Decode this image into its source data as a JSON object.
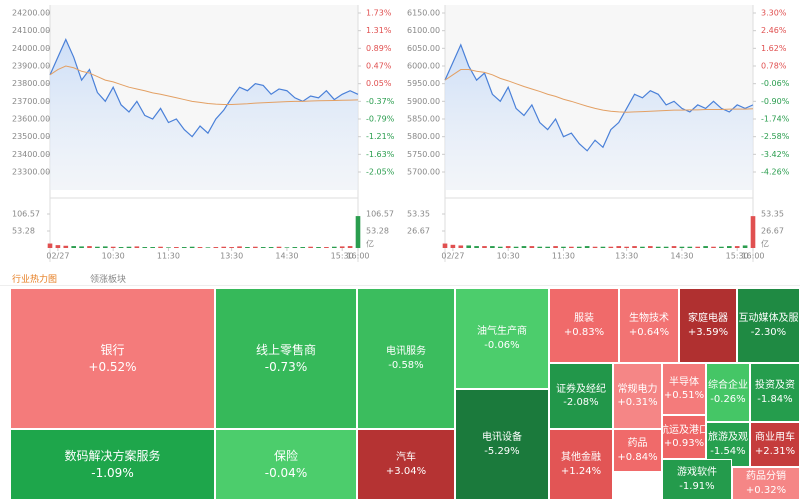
{
  "chart_data": [
    {
      "type": "line",
      "xlim": [
        0,
        39
      ],
      "x": [
        0,
        1,
        2,
        3,
        4,
        5,
        6,
        7,
        8,
        9,
        10,
        11,
        12,
        13,
        14,
        15,
        16,
        17,
        18,
        19,
        20,
        21,
        22,
        23,
        24,
        25,
        26,
        27,
        28,
        29,
        30,
        31,
        32,
        33,
        34,
        35,
        36,
        37,
        38,
        39
      ],
      "xticks": [
        {
          "value": 1,
          "label": "02/27"
        },
        {
          "value": 8,
          "label": "10:30"
        },
        {
          "value": 15,
          "label": "11:30"
        },
        {
          "value": 23,
          "label": "13:30"
        },
        {
          "value": 30,
          "label": "14:30"
        },
        {
          "value": 37,
          "label": "15:30"
        },
        {
          "value": 39,
          "label": "16:00"
        }
      ],
      "ylim": [
        23300,
        24200
      ],
      "yticks": [
        {
          "value": 24200,
          "label": "24200.00"
        },
        {
          "value": 24100,
          "label": "24100.00"
        },
        {
          "value": 24000,
          "label": "24000.00"
        },
        {
          "value": 23900,
          "label": "23900.00"
        },
        {
          "value": 23800,
          "label": "23800.00"
        },
        {
          "value": 23700,
          "label": "23700.00"
        },
        {
          "value": 23600,
          "label": "23600.00"
        },
        {
          "value": 23500,
          "label": "23500.00"
        },
        {
          "value": 23400,
          "label": "23400.00"
        },
        {
          "value": 23300,
          "label": "23300.00"
        }
      ],
      "y2lim": [
        -2.05,
        1.73
      ],
      "y2ticks": [
        {
          "value": 1.73,
          "label": "1.73%"
        },
        {
          "value": 1.31,
          "label": "1.31%"
        },
        {
          "value": 0.89,
          "label": "0.89%"
        },
        {
          "value": 0.47,
          "label": "0.47%"
        },
        {
          "value": 0.05,
          "label": "0.05%"
        },
        {
          "value": -0.37,
          "label": "-0.37%"
        },
        {
          "value": -0.79,
          "label": "-0.79%"
        },
        {
          "value": -1.21,
          "label": "-1.21%"
        },
        {
          "value": -1.63,
          "label": "-1.63%"
        },
        {
          "value": -2.05,
          "label": "-2.05%"
        }
      ],
      "series": [
        {
          "color": "#4a80d8",
          "values": [
            23850,
            23950,
            24050,
            23950,
            23820,
            23880,
            23750,
            23700,
            23780,
            23680,
            23640,
            23700,
            23620,
            23600,
            23660,
            23580,
            23600,
            23540,
            23500,
            23560,
            23520,
            23600,
            23650,
            23720,
            23780,
            23760,
            23800,
            23790,
            23740,
            23770,
            23760,
            23720,
            23700,
            23730,
            23720,
            23760,
            23710,
            23740,
            23760,
            23740
          ]
        },
        {
          "color": "#e3a064",
          "values": [
            23850,
            23880,
            23900,
            23890,
            23870,
            23860,
            23840,
            23820,
            23810,
            23795,
            23780,
            23770,
            23760,
            23748,
            23740,
            23730,
            23720,
            23710,
            23700,
            23694,
            23688,
            23684,
            23682,
            23682,
            23684,
            23686,
            23690,
            23692,
            23694,
            23696,
            23698,
            23700,
            23700,
            23702,
            23703,
            23704,
            23705,
            23706,
            23707,
            23708
          ]
        }
      ],
      "volume": {
        "type": "bar",
        "ylim": [
          0,
          106.57
        ],
        "yticks": [
          106.57,
          53.28
        ],
        "unit": "亿",
        "values": [
          14,
          9,
          7,
          6,
          5,
          6,
          4,
          5,
          4,
          3,
          4,
          5,
          3,
          3,
          4,
          2,
          3,
          3,
          4,
          3,
          2,
          3,
          4,
          3,
          5,
          3,
          4,
          3,
          3,
          4,
          2,
          3,
          3,
          4,
          3,
          3,
          4,
          5,
          6,
          100
        ]
      }
    },
    {
      "type": "line",
      "xlim": [
        0,
        39
      ],
      "x": [
        0,
        1,
        2,
        3,
        4,
        5,
        6,
        7,
        8,
        9,
        10,
        11,
        12,
        13,
        14,
        15,
        16,
        17,
        18,
        19,
        20,
        21,
        22,
        23,
        24,
        25,
        26,
        27,
        28,
        29,
        30,
        31,
        32,
        33,
        34,
        35,
        36,
        37,
        38,
        39
      ],
      "xticks": [
        {
          "value": 1,
          "label": "02/27"
        },
        {
          "value": 8,
          "label": "10:30"
        },
        {
          "value": 15,
          "label": "11:30"
        },
        {
          "value": 23,
          "label": "13:30"
        },
        {
          "value": 30,
          "label": "14:30"
        },
        {
          "value": 37,
          "label": "15:30"
        },
        {
          "value": 39,
          "label": "16:00"
        }
      ],
      "ylim": [
        5700,
        6150
      ],
      "yticks": [
        {
          "value": 6150,
          "label": "6150.00"
        },
        {
          "value": 6100,
          "label": "6100.00"
        },
        {
          "value": 6050,
          "label": "6050.00"
        },
        {
          "value": 6000,
          "label": "6000.00"
        },
        {
          "value": 5950,
          "label": "5950.00"
        },
        {
          "value": 5900,
          "label": "5900.00"
        },
        {
          "value": 5850,
          "label": "5850.00"
        },
        {
          "value": 5800,
          "label": "5800.00"
        },
        {
          "value": 5750,
          "label": "5750.00"
        },
        {
          "value": 5700,
          "label": "5700.00"
        }
      ],
      "y2lim": [
        -4.26,
        3.3
      ],
      "y2ticks": [
        {
          "value": 3.3,
          "label": "3.30%"
        },
        {
          "value": 2.46,
          "label": "2.46%"
        },
        {
          "value": 1.62,
          "label": "1.62%"
        },
        {
          "value": 0.78,
          "label": "0.78%"
        },
        {
          "value": -0.06,
          "label": "-0.06%"
        },
        {
          "value": -0.9,
          "label": "-0.90%"
        },
        {
          "value": -1.74,
          "label": "-1.74%"
        },
        {
          "value": -2.58,
          "label": "-2.58%"
        },
        {
          "value": -3.42,
          "label": "-3.42%"
        },
        {
          "value": -4.26,
          "label": "-4.26%"
        }
      ],
      "series": [
        {
          "color": "#4a80d8",
          "values": [
            5960,
            6010,
            6060,
            6000,
            5960,
            5980,
            5920,
            5900,
            5940,
            5880,
            5860,
            5890,
            5840,
            5820,
            5850,
            5800,
            5810,
            5780,
            5760,
            5790,
            5770,
            5820,
            5840,
            5880,
            5920,
            5910,
            5930,
            5920,
            5890,
            5900,
            5880,
            5870,
            5890,
            5880,
            5900,
            5880,
            5870,
            5890,
            5880,
            5890
          ]
        },
        {
          "color": "#e3a064",
          "values": [
            5960,
            5975,
            5990,
            5990,
            5985,
            5982,
            5975,
            5965,
            5958,
            5950,
            5942,
            5935,
            5928,
            5920,
            5914,
            5906,
            5900,
            5893,
            5886,
            5880,
            5875,
            5872,
            5870,
            5869,
            5870,
            5871,
            5872,
            5873,
            5874,
            5875,
            5875,
            5876,
            5876,
            5877,
            5877,
            5877,
            5878,
            5878,
            5878,
            5879
          ]
        }
      ],
      "volume": {
        "type": "bar",
        "ylim": [
          0,
          53.35
        ],
        "yticks": [
          53.35,
          26.67
        ],
        "unit": "亿",
        "values": [
          7,
          5,
          4,
          4,
          3,
          3,
          3,
          2,
          3,
          2,
          3,
          3,
          2,
          2,
          3,
          2,
          2,
          2,
          3,
          2,
          2,
          2,
          3,
          2,
          3,
          2,
          3,
          2,
          2,
          3,
          2,
          2,
          2,
          3,
          2,
          2,
          3,
          3,
          4,
          50
        ]
      }
    }
  ],
  "tabs": [
    "行业热力图",
    "领涨板块"
  ],
  "treemap": {
    "cells": [
      {
        "name": "银行",
        "change": 0.52,
        "value_label": "+0.52%",
        "color": "#f47b7b"
      },
      {
        "name": "数码解决方案服务",
        "change": -1.09,
        "value_label": "-1.09%",
        "color": "#1ea64b"
      },
      {
        "name": "线上零售商",
        "change": -0.73,
        "value_label": "-0.73%",
        "color": "#36b95a"
      },
      {
        "name": "保险",
        "change": -0.04,
        "value_label": "-0.04%",
        "color": "#4ccd6c"
      },
      {
        "name": "电讯服务",
        "change": -0.58,
        "value_label": "-0.58%",
        "color": "#3bbd5e"
      },
      {
        "name": "汽车",
        "change": 3.04,
        "value_label": "+3.04%",
        "color": "#b53333"
      },
      {
        "name": "油气生产商",
        "change": -0.06,
        "value_label": "-0.06%",
        "color": "#4ccd6c"
      },
      {
        "name": "电讯设备",
        "change": -5.29,
        "value_label": "-5.29%",
        "color": "#1b7a3c"
      },
      {
        "name": "服装",
        "change": 0.83,
        "value_label": "+0.83%",
        "color": "#f06a6a"
      },
      {
        "name": "生物技术",
        "change": 0.64,
        "value_label": "+0.64%",
        "color": "#f27373"
      },
      {
        "name": "家庭电器",
        "change": 3.59,
        "value_label": "+3.59%",
        "color": "#b03030"
      },
      {
        "name": "互动媒体及服",
        "change": -2.3,
        "value_label": "-2.30%",
        "color": "#1f8a43"
      },
      {
        "name": "证券及经纪",
        "change": -2.08,
        "value_label": "-2.08%",
        "color": "#22974a"
      },
      {
        "name": "常规电力",
        "change": 0.31,
        "value_label": "+0.31%",
        "color": "#f58686"
      },
      {
        "name": "半导体",
        "change": 0.51,
        "value_label": "+0.51%",
        "color": "#f47b7b"
      },
      {
        "name": "综合企业",
        "change": -0.26,
        "value_label": "-0.26%",
        "color": "#45c666"
      },
      {
        "name": "投资及资",
        "change": -1.84,
        "value_label": "-1.84%",
        "color": "#259d4d"
      },
      {
        "name": "其他金融",
        "change": 1.24,
        "value_label": "+1.24%",
        "color": "#e25555"
      },
      {
        "name": "药品",
        "change": 0.84,
        "value_label": "+0.84%",
        "color": "#f06a6a"
      },
      {
        "name": "航运及港口",
        "change": 0.93,
        "value_label": "+0.93%",
        "color": "#ee6565"
      },
      {
        "name": "旅游及观",
        "change": -1.54,
        "value_label": "-1.54%",
        "color": "#27a04f"
      },
      {
        "name": "商业用车",
        "change": 2.31,
        "value_label": "+2.31%",
        "color": "#c53c3c"
      },
      {
        "name": "游戏软件",
        "change": -1.91,
        "value_label": "-1.91%",
        "color": "#249b4c"
      },
      {
        "name": "药品分销",
        "change": 0.32,
        "value_label": "+0.32%",
        "color": "#f58686"
      }
    ]
  }
}
